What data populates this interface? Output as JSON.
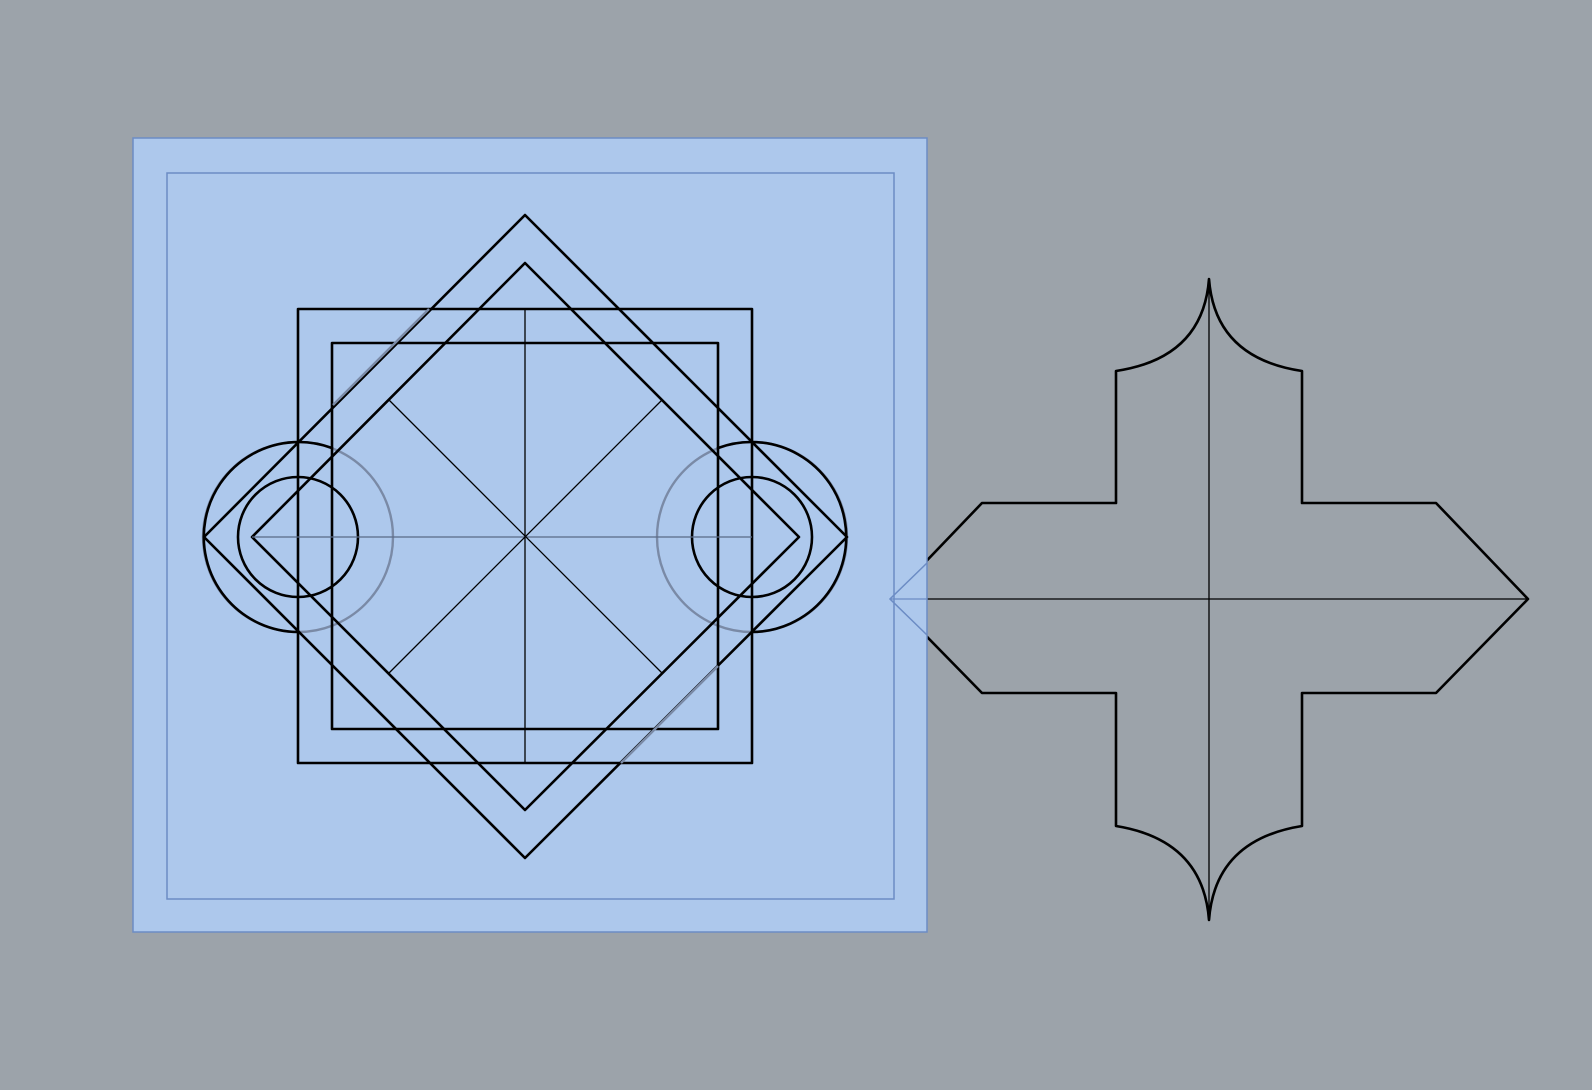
{
  "canvas": {
    "background_color": "#9ca3aa",
    "line_color": "#000000"
  },
  "selection": {
    "fill_color": "#adc8ec",
    "border_color": "#6c8cc4",
    "inner_border_color": "#6c8cc4",
    "overlay_line_color": "#7a8aa6"
  }
}
